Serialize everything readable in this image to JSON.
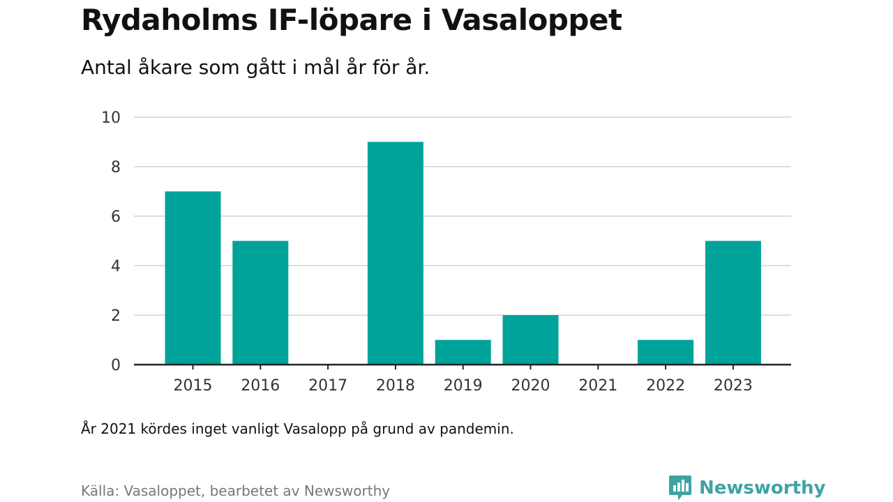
{
  "title": "Rydaholms IF-löpare i Vasaloppet",
  "subtitle": "Antal åkare som gått i mål år för år.",
  "note": "År 2021 kördes inget vanligt Vasalopp på grund av pandemin.",
  "source": "Källa: Vasaloppet, bearbetet av Newsworthy",
  "brand": {
    "name": "Newsworthy",
    "icon": "newsworthy-logo-icon"
  },
  "colors": {
    "bar": "#00a39a",
    "grid": "#dddddd",
    "axis": "#222222",
    "brand": "#3fa3a3"
  },
  "chart_data": {
    "type": "bar",
    "categories": [
      "2015",
      "2016",
      "2017",
      "2018",
      "2019",
      "2020",
      "2021",
      "2022",
      "2023"
    ],
    "values": [
      7,
      5,
      0,
      9,
      1,
      2,
      0,
      1,
      5
    ],
    "ylim": [
      0,
      10
    ],
    "yticks": [
      0,
      2,
      4,
      6,
      8,
      10
    ],
    "grid": true
  }
}
